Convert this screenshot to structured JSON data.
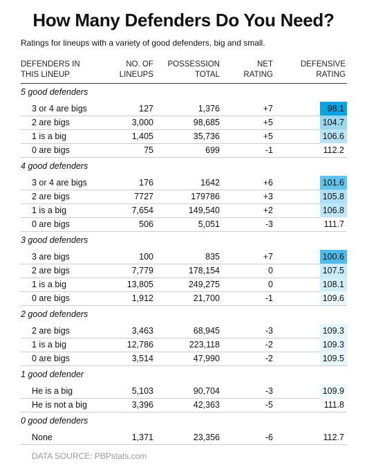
{
  "header": {
    "title": "How Many Defenders Do You Need?",
    "subtitle": "Ratings for lineups with a variety of good defenders, big and small."
  },
  "table": {
    "columns": [
      [
        "DEFENDERS IN",
        "THIS LINEUP"
      ],
      [
        "NO. OF",
        "LINEUPS"
      ],
      [
        "POSSESSION",
        "TOTAL"
      ],
      [
        "NET",
        "RATING"
      ],
      [
        "DEFENSIVE",
        "RATING"
      ]
    ],
    "groups": [
      {
        "name": "5 good defenders",
        "rows": [
          [
            "3 or 4 are bigs",
            "127",
            "1,376",
            "+7",
            "98.1"
          ],
          [
            "2 are bigs",
            "3,000",
            "98,685",
            "+5",
            "104.7"
          ],
          [
            "1 is a big",
            "1,405",
            "35,736",
            "+5",
            "106.6"
          ],
          [
            "0 are bigs",
            "75",
            "699",
            "-1",
            "112.2"
          ]
        ]
      },
      {
        "name": "4 good defenders",
        "rows": [
          [
            "3 or 4 are bigs",
            "176",
            "1642",
            "+6",
            "101.6"
          ],
          [
            "2 are bigs",
            "7727",
            "179786",
            "+3",
            "105.8"
          ],
          [
            "1 is a big",
            "7,654",
            "149,540",
            "+2",
            "106.8"
          ],
          [
            "0 are bigs",
            "506",
            "5,051",
            "-3",
            "111.7"
          ]
        ]
      },
      {
        "name": "3 good defenders",
        "rows": [
          [
            "3 are bigs",
            "100",
            "835",
            "+7",
            "100.6"
          ],
          [
            "2 are bigs",
            "7,779",
            "178,154",
            "0",
            "107.5"
          ],
          [
            "1 is a big",
            "13,805",
            "249,275",
            "0",
            "108.1"
          ],
          [
            "0 are bigs",
            "1,912",
            "21,700",
            "-1",
            "109.6"
          ]
        ]
      },
      {
        "name": "2 good defenders",
        "rows": [
          [
            "2 are bigs",
            "3,463",
            "68,945",
            "-3",
            "109.3"
          ],
          [
            "1 is a big",
            "12,786",
            "223,118",
            "-2",
            "109.3"
          ],
          [
            "0 are bigs",
            "3,514",
            "47,990",
            "-2",
            "109.5"
          ]
        ]
      },
      {
        "name": "1 good defender",
        "rows": [
          [
            "He is a big",
            "5,103",
            "90,704",
            "-3",
            "109.9"
          ],
          [
            "He is not a big",
            "3,396",
            "42,363",
            "-5",
            "111.8"
          ]
        ]
      },
      {
        "name": "0 good defenders",
        "rows": [
          [
            "None",
            "1,371",
            "23,356",
            "-6",
            "112.7"
          ]
        ]
      }
    ]
  },
  "footer": {
    "source": "DATA SOURCE: PBPstats.com"
  }
}
